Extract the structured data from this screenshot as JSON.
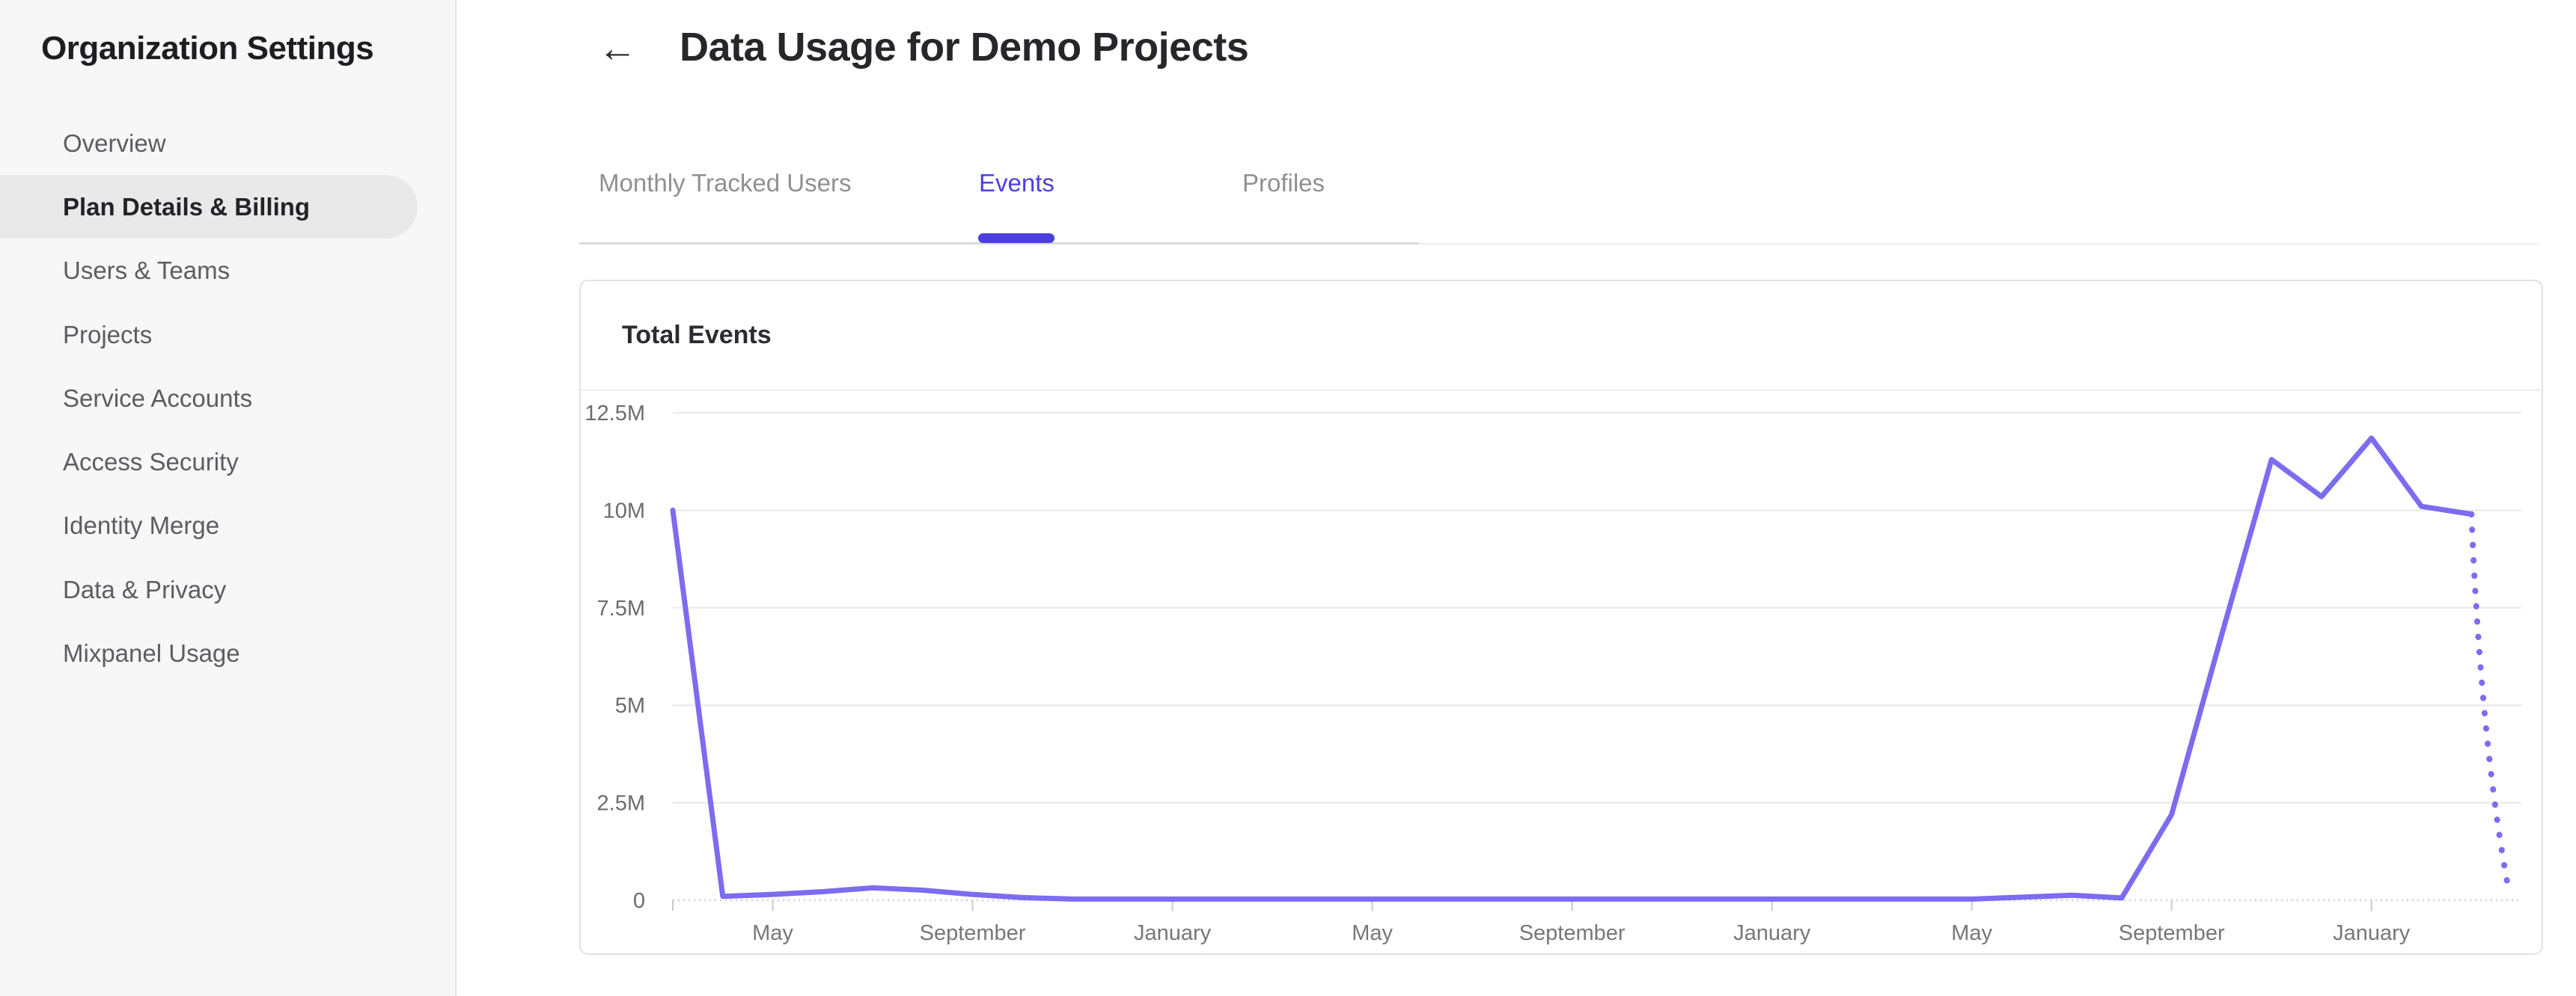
{
  "sidebar": {
    "title": "Organization Settings",
    "items": [
      {
        "label": "Overview",
        "active": false
      },
      {
        "label": "Plan Details & Billing",
        "active": true
      },
      {
        "label": "Users & Teams",
        "active": false
      },
      {
        "label": "Projects",
        "active": false
      },
      {
        "label": "Service Accounts",
        "active": false
      },
      {
        "label": "Access Security",
        "active": false
      },
      {
        "label": "Identity Merge",
        "active": false
      },
      {
        "label": "Data & Privacy",
        "active": false
      },
      {
        "label": "Mixpanel Usage",
        "active": false
      }
    ]
  },
  "header": {
    "back_icon": "←",
    "title": "Data Usage for Demo Projects"
  },
  "tabs": [
    {
      "label": "Monthly Tracked Users",
      "active": false
    },
    {
      "label": "Events",
      "active": true
    },
    {
      "label": "Profiles",
      "active": false
    }
  ],
  "card": {
    "title": "Total Events"
  },
  "colors": {
    "accent": "#4c3fe0",
    "line": "#7b6cf0",
    "grid": "#e9e9eb",
    "axis": "#cfcfd2",
    "tick": "#c9c9cc",
    "y_label": "#6c6c70",
    "x_label": "#77777b"
  },
  "chart_data": {
    "type": "line",
    "title": "Total Events",
    "series_name": "Total Events",
    "ylim": [
      0,
      12500000
    ],
    "y_tick_values": [
      0,
      2500000,
      5000000,
      7500000,
      10000000,
      12500000
    ],
    "y_tick_labels": [
      "0",
      "2.5M",
      "5M",
      "7.5M",
      "10M",
      "12.5M"
    ],
    "x_tick_labels": [
      "May",
      "September",
      "January",
      "May",
      "September",
      "January",
      "May",
      "September",
      "January"
    ],
    "x_tick_indices": [
      2,
      6,
      10,
      14,
      18,
      22,
      26,
      30,
      34
    ],
    "values": [
      10000000,
      100000,
      150000,
      220000,
      320000,
      260000,
      150000,
      70000,
      30000,
      30000,
      30000,
      30000,
      30000,
      30000,
      30000,
      30000,
      30000,
      30000,
      30000,
      30000,
      30000,
      30000,
      30000,
      30000,
      30000,
      30000,
      30000,
      80000,
      130000,
      60000,
      2200000,
      6800000,
      11300000,
      10350000,
      11850000,
      10100000,
      9900000,
      100000
    ],
    "projected_final_segment": true,
    "grid": true,
    "legend_position": "none"
  }
}
